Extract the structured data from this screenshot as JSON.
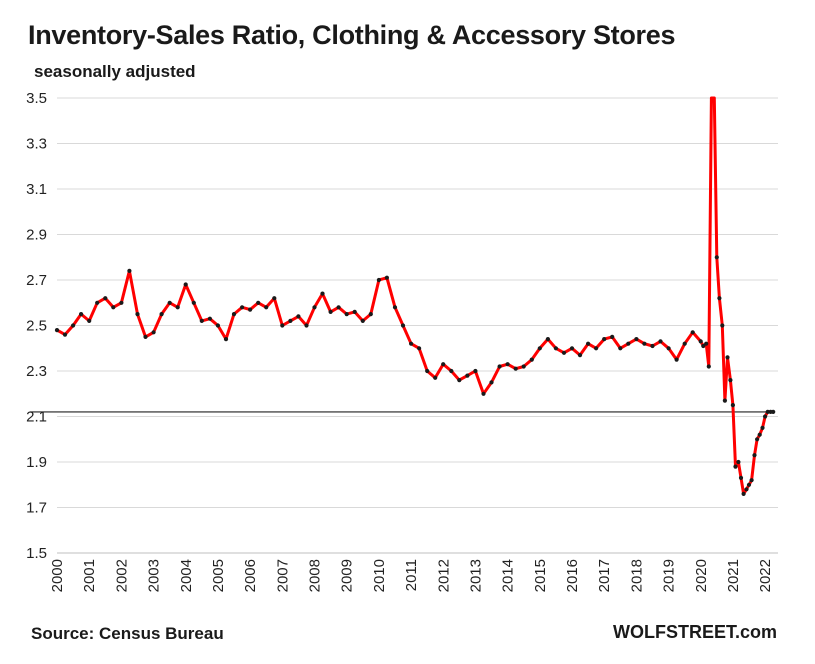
{
  "chart_data": {
    "type": "line",
    "title": "Inventory-Sales Ratio, Clothing & Accessory Stores",
    "subtitle": "seasonally adjusted",
    "xlabel": "",
    "ylabel": "",
    "ylim": [
      1.5,
      3.5
    ],
    "xlim": [
      2000,
      2022.4
    ],
    "y_ticks": [
      "1.5",
      "1.7",
      "1.9",
      "2.1",
      "2.3",
      "2.5",
      "2.7",
      "2.9",
      "3.1",
      "3.3",
      "3.5"
    ],
    "x_ticks": [
      "2000",
      "2001",
      "2002",
      "2003",
      "2004",
      "2005",
      "2006",
      "2007",
      "2008",
      "2009",
      "2010",
      "2011",
      "2012",
      "2013",
      "2014",
      "2015",
      "2016",
      "2017",
      "2018",
      "2019",
      "2020",
      "2021",
      "2022"
    ],
    "grid": "horizontal",
    "reference_line": 2.12,
    "line_color": "#ff0000",
    "marker_color": "#1a1a1a",
    "series": [
      {
        "x": [
          2000.0,
          2000.25,
          2000.5,
          2000.75,
          2001.0,
          2001.25,
          2001.5,
          2001.75,
          2002.0,
          2002.25,
          2002.5,
          2002.75,
          2003.0,
          2003.25,
          2003.5,
          2003.75,
          2004.0,
          2004.25,
          2004.5,
          2004.75,
          2005.0,
          2005.25,
          2005.5,
          2005.75,
          2006.0,
          2006.25,
          2006.5,
          2006.75,
          2007.0,
          2007.25,
          2007.5,
          2007.75,
          2008.0,
          2008.25,
          2008.5,
          2008.75,
          2009.0,
          2009.25,
          2009.5,
          2009.75,
          2010.0,
          2010.25,
          2010.5,
          2010.75,
          2011.0,
          2011.25,
          2011.5,
          2011.75,
          2012.0,
          2012.25,
          2012.5,
          2012.75,
          2013.0,
          2013.25,
          2013.5,
          2013.75,
          2014.0,
          2014.25,
          2014.5,
          2014.75,
          2015.0,
          2015.25,
          2015.5,
          2015.75,
          2016.0,
          2016.25,
          2016.5,
          2016.75,
          2017.0,
          2017.25,
          2017.5,
          2017.75,
          2018.0,
          2018.25,
          2018.5,
          2018.75,
          2019.0,
          2019.25,
          2019.5,
          2019.75,
          2020.0,
          2020.08,
          2020.17,
          2020.25,
          2020.33,
          2020.42,
          2020.5,
          2020.58,
          2020.67,
          2020.75,
          2020.83,
          2020.92,
          2021.0,
          2021.08,
          2021.17,
          2021.25,
          2021.33,
          2021.42,
          2021.5,
          2021.58,
          2021.67,
          2021.75,
          2021.83,
          2021.92,
          2022.0,
          2022.08,
          2022.17,
          2022.25
        ],
        "values": [
          2.48,
          2.46,
          2.5,
          2.55,
          2.52,
          2.6,
          2.62,
          2.58,
          2.6,
          2.74,
          2.55,
          2.45,
          2.47,
          2.55,
          2.6,
          2.58,
          2.68,
          2.6,
          2.52,
          2.53,
          2.5,
          2.44,
          2.55,
          2.58,
          2.57,
          2.6,
          2.58,
          2.62,
          2.5,
          2.52,
          2.54,
          2.5,
          2.58,
          2.64,
          2.56,
          2.58,
          2.55,
          2.56,
          2.52,
          2.55,
          2.7,
          2.71,
          2.58,
          2.5,
          2.42,
          2.4,
          2.3,
          2.27,
          2.33,
          2.3,
          2.26,
          2.28,
          2.3,
          2.2,
          2.25,
          2.32,
          2.33,
          2.31,
          2.32,
          2.35,
          2.4,
          2.44,
          2.4,
          2.38,
          2.4,
          2.37,
          2.42,
          2.4,
          2.44,
          2.45,
          2.4,
          2.42,
          2.44,
          2.42,
          2.41,
          2.43,
          2.4,
          2.35,
          2.42,
          2.47,
          2.43,
          2.41,
          2.42,
          2.32,
          3.5,
          3.5,
          2.8,
          2.62,
          2.5,
          2.17,
          2.36,
          2.26,
          2.15,
          1.88,
          1.9,
          1.83,
          1.76,
          1.78,
          1.8,
          1.82,
          1.93,
          2.0,
          2.02,
          2.05,
          2.1,
          2.12,
          2.12,
          2.12
        ]
      }
    ]
  },
  "source": "Source: Census Bureau",
  "brand": "WOLFSTREET.com"
}
